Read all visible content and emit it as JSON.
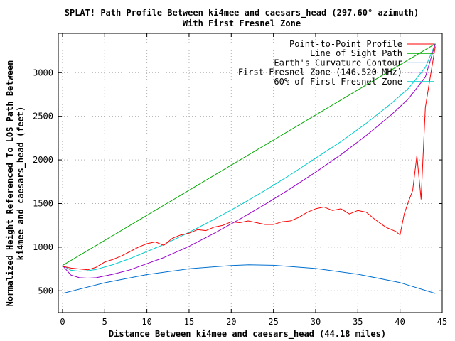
{
  "chart_data": {
    "type": "line",
    "title_line1": "SPLAT! Path Profile Between ki4mee and caesars_head (297.60° azimuth)",
    "title_line2": "With First Fresnel Zone",
    "xlabel": "Distance Between ki4mee and caesars_head (44.18 miles)",
    "ylabel_line1": "Normalized Height Referenced To LOS Path Between",
    "ylabel_line2": "ki4mee and caesars_head (feet)",
    "xlim": [
      -0.5,
      45
    ],
    "ylim": [
      250,
      3450
    ],
    "xticks": [
      0,
      5,
      10,
      15,
      20,
      25,
      30,
      35,
      40,
      45
    ],
    "yticks": [
      500,
      1000,
      1500,
      2000,
      2500,
      3000
    ],
    "grid": true,
    "legend_position": "top-right",
    "series": [
      {
        "name": "Point-to-Point Profile",
        "color": "#ff0000",
        "x": [
          0,
          1,
          2,
          3,
          4,
          5,
          6,
          7,
          8,
          9,
          10,
          11,
          12,
          13,
          14,
          15,
          16,
          17,
          18,
          19,
          20,
          21,
          22,
          23,
          24,
          25,
          26,
          27,
          28,
          29,
          30,
          31,
          32,
          33,
          34,
          35,
          36,
          37,
          38,
          38.5,
          39,
          39.5,
          40,
          40.5,
          41,
          41.5,
          42,
          42.5,
          43,
          43.5,
          44.18
        ],
        "y": [
          780,
          760,
          750,
          740,
          770,
          830,
          860,
          900,
          950,
          1000,
          1040,
          1060,
          1020,
          1100,
          1140,
          1160,
          1200,
          1190,
          1230,
          1250,
          1290,
          1280,
          1300,
          1280,
          1260,
          1260,
          1290,
          1300,
          1340,
          1400,
          1440,
          1460,
          1420,
          1440,
          1380,
          1420,
          1400,
          1320,
          1250,
          1220,
          1200,
          1180,
          1140,
          1380,
          1520,
          1650,
          2050,
          1550,
          2600,
          2900,
          3300
        ]
      },
      {
        "name": "Line of Sight Path",
        "color": "#00aa00",
        "x": [
          0,
          44.18
        ],
        "y": [
          790,
          3330
        ]
      },
      {
        "name": "Earth's Curvature Contour",
        "color": "#0070d0",
        "x": [
          0,
          5,
          10,
          15,
          20,
          22.09,
          25,
          30,
          35,
          40,
          44.18
        ],
        "y": [
          470,
          592,
          686,
          752,
          790,
          797,
          792,
          756,
          690,
          594,
          470
        ]
      },
      {
        "name": "First Fresnel Zone (146.520 MHz)",
        "color": "#9900cc",
        "x": [
          0,
          1,
          2,
          3,
          4,
          6,
          8,
          10,
          12,
          15,
          18,
          21,
          24,
          27,
          30,
          33,
          36,
          39,
          41,
          43,
          44.18
        ],
        "y": [
          790,
          680,
          650,
          645,
          650,
          690,
          740,
          810,
          880,
          1010,
          1160,
          1320,
          1490,
          1670,
          1860,
          2060,
          2280,
          2520,
          2700,
          2950,
          3330
        ]
      },
      {
        "name": "60% of First Fresnel Zone",
        "color": "#00cccc",
        "x": [
          0,
          1,
          2,
          3,
          4,
          6,
          8,
          10,
          12,
          15,
          18,
          21,
          24,
          27,
          30,
          33,
          36,
          39,
          41,
          43,
          44.18
        ],
        "y": [
          790,
          735,
          725,
          730,
          745,
          800,
          870,
          950,
          1030,
          1170,
          1320,
          1480,
          1650,
          1830,
          2020,
          2210,
          2420,
          2650,
          2820,
          3060,
          3330
        ]
      }
    ]
  }
}
